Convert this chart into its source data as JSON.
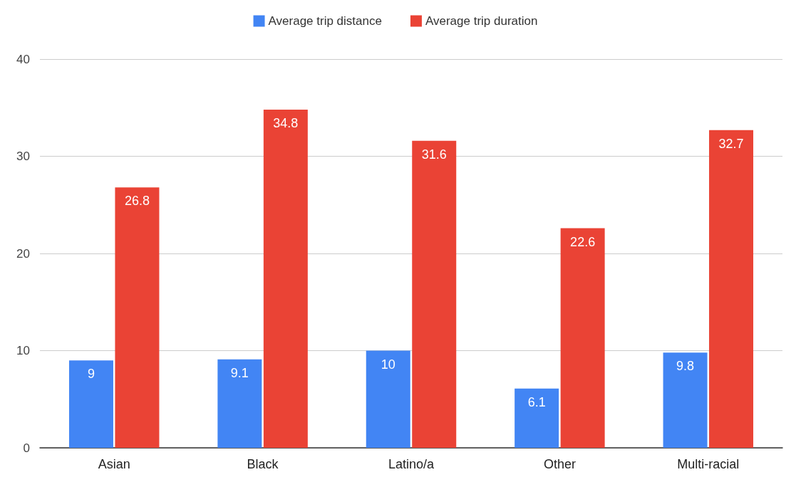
{
  "chart_data": {
    "type": "bar",
    "categories": [
      "Asian",
      "Black",
      "Latino/a",
      "Other",
      "Multi-racial"
    ],
    "series": [
      {
        "name": "Average trip distance",
        "color": "#4285f4",
        "values": [
          9,
          9.1,
          10,
          6.1,
          9.8
        ]
      },
      {
        "name": "Average trip duration",
        "color": "#ea4335",
        "values": [
          26.8,
          34.8,
          31.6,
          22.6,
          32.7
        ]
      }
    ],
    "ylim": [
      0,
      40
    ],
    "yticks": [
      0,
      10,
      20,
      30,
      40
    ],
    "grid": "y",
    "legend": "top",
    "data_labels": true
  }
}
